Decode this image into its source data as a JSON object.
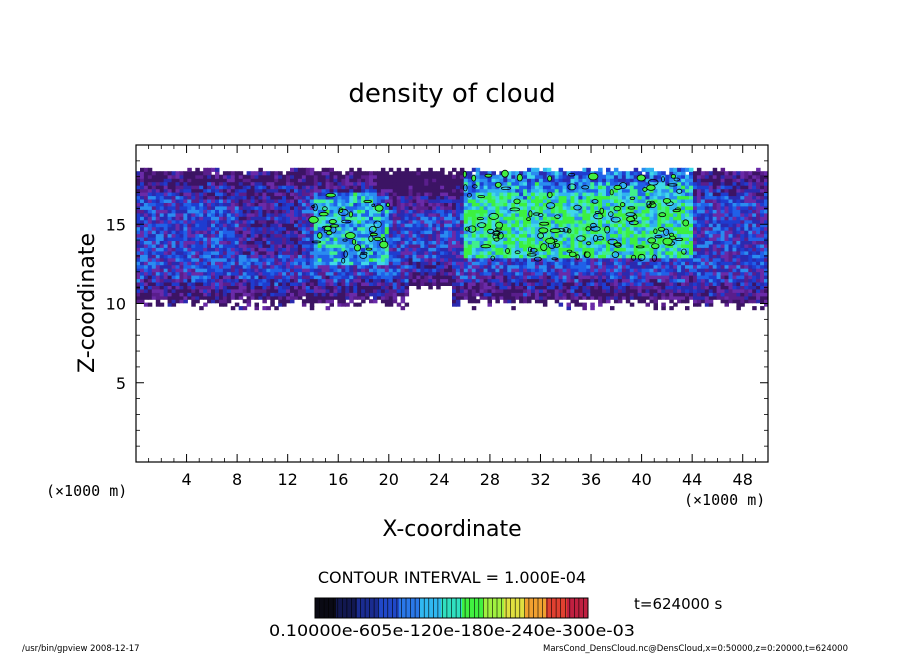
{
  "chart_data": {
    "type": "heatmap",
    "title": "density of cloud",
    "xlabel": "X-coordinate",
    "ylabel": "Z-coordinate",
    "x_unit": "(×1000 m)",
    "x_unit_right": "(×1000 m)",
    "xlim": [
      0,
      50
    ],
    "ylim": [
      0,
      20
    ],
    "x_ticks": [
      4,
      8,
      12,
      16,
      20,
      24,
      28,
      32,
      36,
      40,
      44,
      48
    ],
    "y_ticks": [
      5,
      10,
      15
    ],
    "contour_interval": "CONTOUR INTERVAL = 1.000E-04",
    "time_label": "t=624000 s",
    "colorbar_labels": "0.10000e-605e-120e-180e-240e-300e-03",
    "colorbar_colors": [
      "#0a0a14",
      "#121850",
      "#1a2c90",
      "#2048c8",
      "#2a78e8",
      "#30b8f0",
      "#30e0c0",
      "#40f040",
      "#a0f040",
      "#e0e040",
      "#f0a030",
      "#e04030",
      "#c02040"
    ],
    "region": {
      "z_bottom": 10,
      "z_top": 18.6,
      "gap_x": [
        21.5,
        25
      ],
      "gap_z_bottom": 11.2,
      "notes": "blue/purple noisy field, green patches (high density) mainly at x 26-44 and x 14-20, z 13-18"
    },
    "footer_left": "/usr/bin/gpview  2008-12-17",
    "footer_right": "MarsCond_DensCloud.nc@DensCloud,x=0:50000,z=0:20000,t=624000"
  }
}
